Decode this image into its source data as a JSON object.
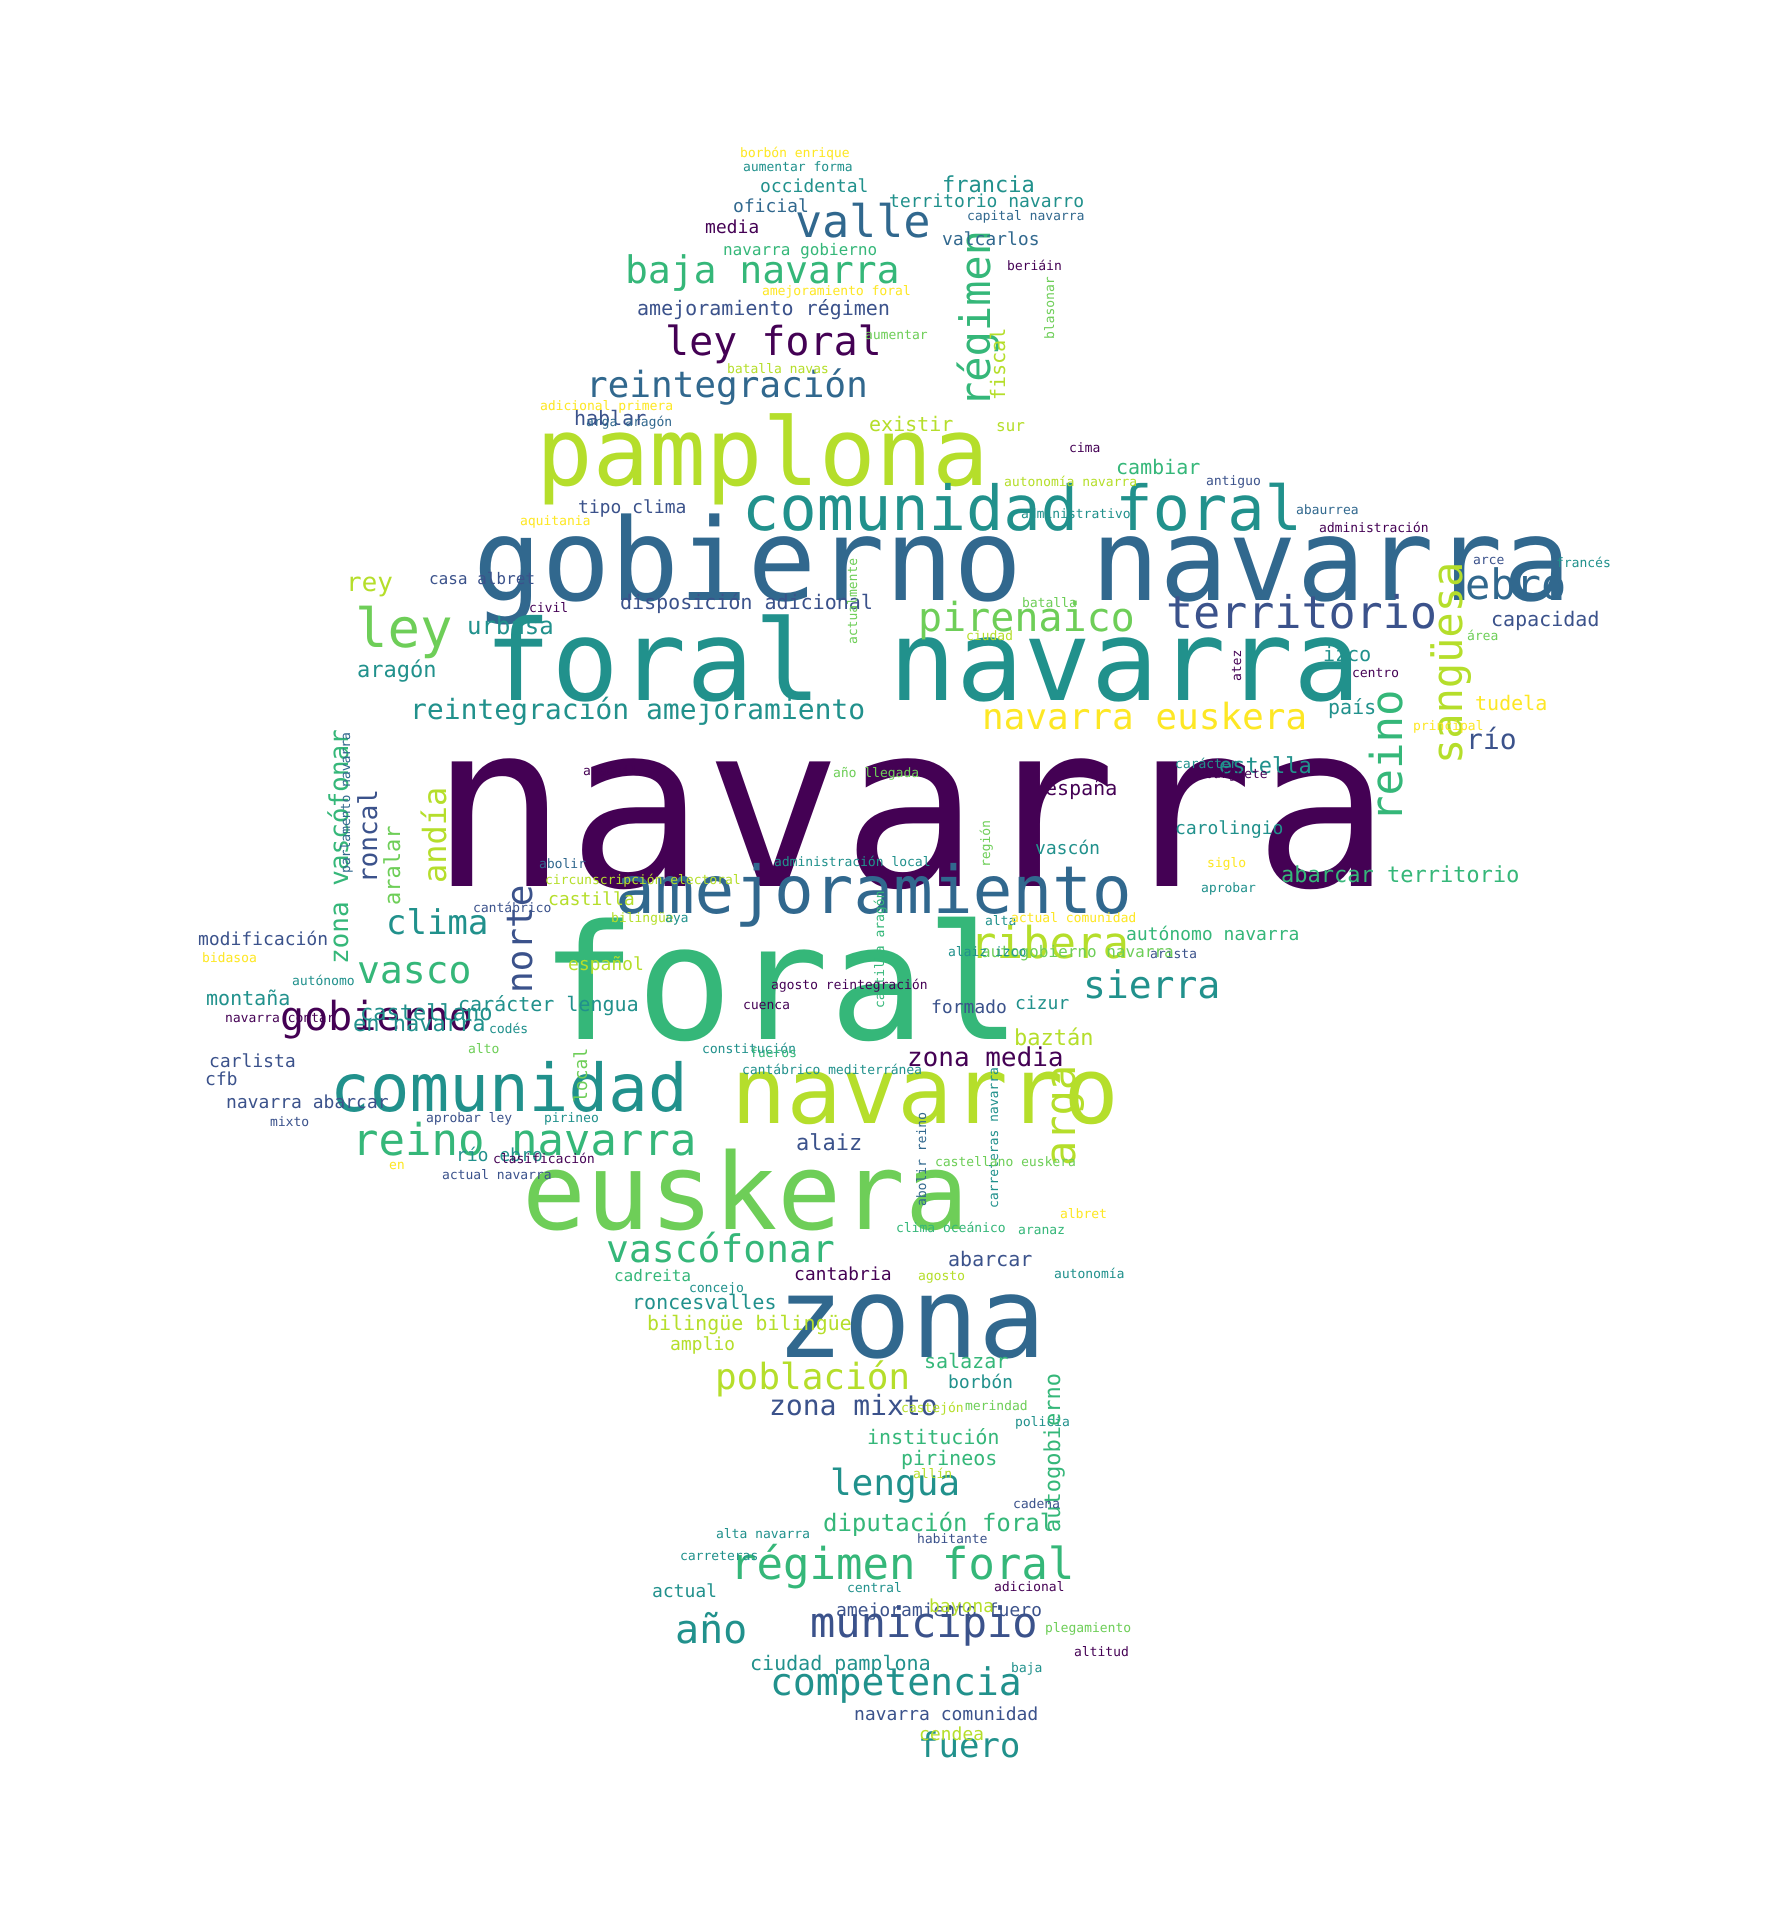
{
  "palette": {
    "dark_purple": "#440154",
    "indigo": "#3b528b",
    "blue": "#31688e",
    "teal": "#21918c",
    "green": "#35b779",
    "light_green": "#6ece58",
    "lime": "#b5de2b",
    "yellow": "#fde725"
  },
  "words": [
    "navarra",
    "foral",
    "gobierno navarra",
    "foral navarra",
    "zona",
    "euskera",
    "pamplona",
    "navarro",
    "amejoramiento",
    "comunidad",
    "comunidad foral",
    "ley",
    "territorio",
    "valle",
    "baja navarra",
    "ley foral",
    "reintegración",
    "régimen",
    "reino navarra",
    "pirenaico",
    "sangüesa",
    "reino",
    "ebro",
    "navarra euskera",
    "ribera",
    "sierra",
    "vasco",
    "clima",
    "gobierno",
    "norte",
    "andía",
    "zona vascófonar",
    "roncal",
    "castellano",
    "vascófonar",
    "población",
    "lengua",
    "régimen foral",
    "municipio",
    "año",
    "competencia",
    "fuero",
    "zona mixto",
    "diputación foral",
    "arga",
    "zona media",
    "reintegración amejoramiento",
    "disposición adicional",
    "urbasa",
    "aragón",
    "rey",
    "río",
    "estella",
    "españa",
    "amejoramiento régimen",
    "francia",
    "occidental",
    "oficial",
    "media",
    "territorio navarro",
    "valcarlos",
    "navarra gobierno",
    "fiscal",
    "existir",
    "hablar",
    "cambiar",
    "tipo clima",
    "capital navarra",
    "beriáin",
    "blasonar",
    "aumentar forma",
    "borbón enrique",
    "amejoramiento foral",
    "aumentar",
    "batalla navas",
    "adicional primera",
    "arga aragón",
    "sur",
    "cima",
    "antiguo",
    "autonomía navarra",
    "administrativo",
    "abaurrea",
    "aquitania",
    "administración",
    "arce",
    "francés",
    "capacidad",
    "área",
    "casa albret",
    "civil",
    "batalla",
    "ciudad",
    "actualmente",
    "atez",
    "izco",
    "centro",
    "país",
    "tudela",
    "principal",
    "burguete",
    "araquil",
    "año llegada",
    "carácter",
    "carolingio",
    "vascón",
    "región",
    "aralar",
    "parlamento navarra",
    "abolir",
    "administración local",
    "circunscripción electoral",
    "castilla",
    "siglo",
    "aprobar",
    "abarcar territorio",
    "cantábrico",
    "bilingüe",
    "aya",
    "castilla aragón",
    "alta",
    "actual comunidad",
    "autónomo navarra",
    "arista",
    "autogobierno navarra",
    "español",
    "alaiz izco",
    "modificación",
    "bidasoa",
    "autónomo",
    "montaña",
    "carácter lengua",
    "agosto reintegración",
    "cuenca",
    "formado",
    "cizur",
    "baztán",
    "en navarra",
    "navarra contar",
    "codés",
    "alto",
    "constitución",
    "fueros",
    "cantábrico mediterránea",
    "carlista",
    "cfb",
    "local",
    "navarra abarcar",
    "mixto",
    "aprobar ley",
    "pirineo",
    "alaiz",
    "río ebro",
    "clasificación",
    "abolir reino",
    "carreteras navarra",
    "castellano euskera",
    "en",
    "actual navarra",
    "albret",
    "aranaz",
    "clima oceánico",
    "abarcar",
    "cadreita",
    "agosto",
    "autonomía",
    "cantabria",
    "concejo",
    "roncesvalles",
    "bilingüe bilingüe",
    "amplio",
    "salazar",
    "borbón",
    "castejón",
    "merindad",
    "policía",
    "institución",
    "pirineos",
    "allín",
    "autogobierno",
    "cadena",
    "alta navarra",
    "habitante",
    "carreteras",
    "actual",
    "central",
    "adicional",
    "amejoramiento fuero",
    "bayona",
    "plegamiento",
    "ciudad pamplona",
    "altitud",
    "baja",
    "navarra comunidad",
    "cendea",
    "entidad local",
    "capital",
    "atlánticos",
    "metropolitano pamplona",
    "vertiente"
  ]
}
